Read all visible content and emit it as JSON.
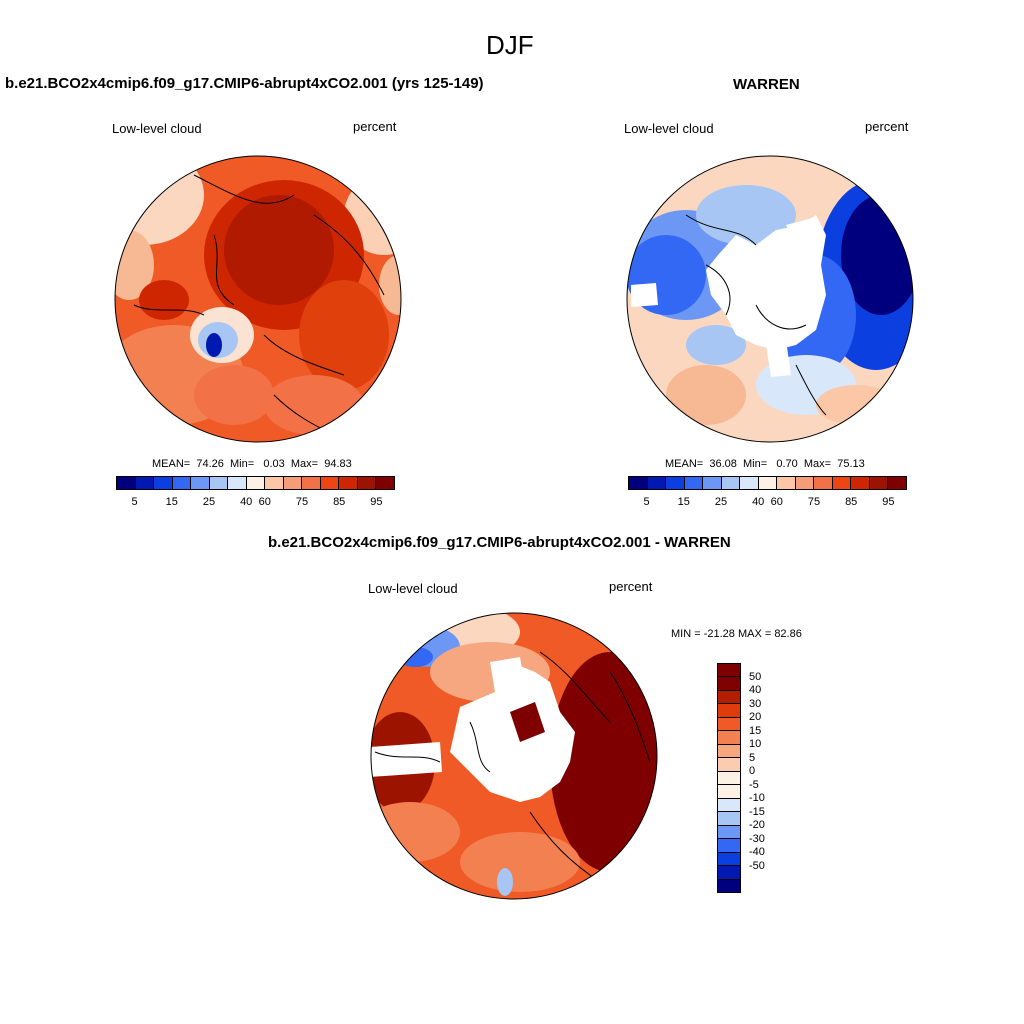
{
  "title": "DJF",
  "colors": {
    "hi_scale": [
      "#00007f",
      "#0019b0",
      "#0b3fe0",
      "#3368f4",
      "#6c97f4",
      "#a7c6f4",
      "#d8e8fa",
      "#fdf0e4",
      "#fbc7a7",
      "#f59d76",
      "#f27146",
      "#ed4613",
      "#cd2600",
      "#9c1400",
      "#7f0000"
    ],
    "diff_scale": [
      "#7f0000",
      "#b51d00",
      "#e03b0c",
      "#f05a26",
      "#f38050",
      "#f7a77f",
      "#fbccb0",
      "#fdf0e4",
      "#d8e8fa",
      "#a7c6f4",
      "#6c97f4",
      "#3368f4",
      "#0b3fe0",
      "#0019b0",
      "#00007f"
    ]
  },
  "panel1": {
    "case_title": "b.e21.BCO2x4cmip6.f09_g17.CMIP6-abrupt4xCO2.001 (yrs 125-149)",
    "var_label": "Low-level cloud",
    "units": "percent",
    "stats": {
      "mean_label": "MEAN=",
      "mean": "74.26",
      "min_label": "Min=",
      "min": "0.03",
      "max_label": "Max=",
      "max": "94.83"
    },
    "colorbar_labels": [
      "5",
      "15",
      "25",
      "40",
      "60",
      "75",
      "85",
      "95"
    ]
  },
  "panel2": {
    "case_title": "WARREN",
    "var_label": "Low-level cloud",
    "units": "percent",
    "stats": {
      "mean_label": "MEAN=",
      "mean": "36.08",
      "min_label": "Min=",
      "min": "0.70",
      "max_label": "Max=",
      "max": "75.13"
    },
    "colorbar_labels": [
      "5",
      "15",
      "25",
      "40",
      "60",
      "75",
      "85",
      "95"
    ]
  },
  "panel3": {
    "case_title": "b.e21.BCO2x4cmip6.f09_g17.CMIP6-abrupt4xCO2.001 - WARREN",
    "var_label": "Low-level cloud",
    "units": "percent",
    "minmax_text": "MIN = -21.28 MAX =  82.86",
    "colorbar_labels": [
      "50",
      "40",
      "30",
      "20",
      "15",
      "10",
      "5",
      "0",
      "-5",
      "-10",
      "-15",
      "-20",
      "-30",
      "-40",
      "-50"
    ]
  }
}
